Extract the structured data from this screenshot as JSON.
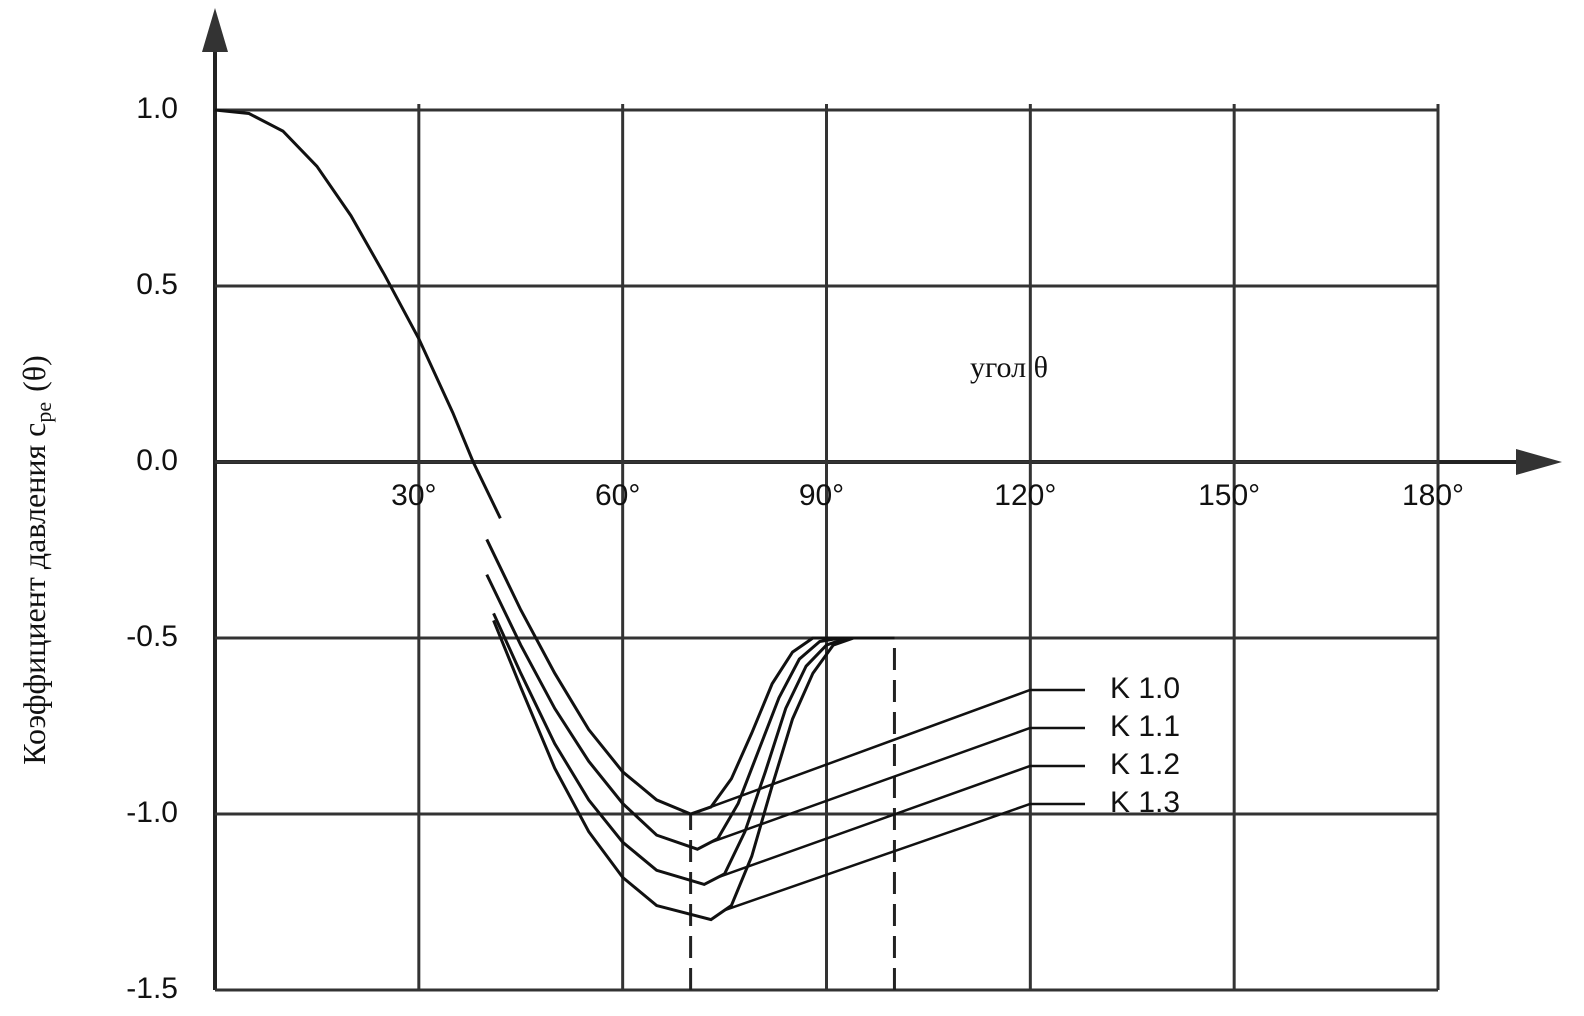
{
  "chart_data": {
    "type": "line",
    "annotation": "угол θ",
    "ylabel": "Коэффициент давления c",
    "ylabel_sub": "pe",
    "ylabel_suffix": "(θ)",
    "xlim": [
      0,
      180
    ],
    "ylim": [
      -1.5,
      1.0
    ],
    "xticks": [
      {
        "value": 30,
        "label": "30°"
      },
      {
        "value": 60,
        "label": "60°"
      },
      {
        "value": 90,
        "label": "90°"
      },
      {
        "value": 120,
        "label": "120°"
      },
      {
        "value": 150,
        "label": "150°"
      },
      {
        "value": 180,
        "label": "180°"
      }
    ],
    "yticks": [
      {
        "value": 1.0,
        "label": "1.0"
      },
      {
        "value": 0.5,
        "label": "0.5"
      },
      {
        "value": 0.0,
        "label": "0.0"
      },
      {
        "value": -0.5,
        "label": "-0.5"
      },
      {
        "value": -1.0,
        "label": "-1.0"
      },
      {
        "value": -1.5,
        "label": "-1.5"
      }
    ],
    "grid": true,
    "color": "#111111",
    "main_curve": {
      "x": [
        0,
        5,
        10,
        15,
        20,
        25,
        30,
        35,
        38,
        42
      ],
      "values": [
        1.0,
        0.99,
        0.94,
        0.84,
        0.7,
        0.53,
        0.35,
        0.14,
        0.0,
        -0.16
      ]
    },
    "vlines": [
      70,
      100
    ],
    "series": [
      {
        "name": "K 1.0",
        "color": "#111111",
        "x": [
          40,
          45,
          50,
          55,
          60,
          65,
          70,
          73,
          76,
          79,
          82,
          85,
          88,
          90,
          100
        ],
        "values": [
          -0.22,
          -0.42,
          -0.6,
          -0.76,
          -0.88,
          -0.96,
          -1.0,
          -0.98,
          -0.9,
          -0.77,
          -0.63,
          -0.54,
          -0.5,
          -0.5,
          -0.5
        ]
      },
      {
        "name": "K 1.1",
        "color": "#111111",
        "x": [
          40,
          45,
          50,
          55,
          60,
          65,
          71,
          74,
          77,
          80,
          83,
          86,
          89,
          92,
          100
        ],
        "values": [
          -0.32,
          -0.52,
          -0.7,
          -0.85,
          -0.97,
          -1.06,
          -1.1,
          -1.07,
          -0.97,
          -0.82,
          -0.67,
          -0.56,
          -0.51,
          -0.5,
          -0.5
        ]
      },
      {
        "name": "K 1.2",
        "color": "#111111",
        "x": [
          41,
          45,
          50,
          55,
          60,
          65,
          72,
          75,
          78,
          81,
          84,
          87,
          90,
          93,
          100
        ],
        "values": [
          -0.43,
          -0.6,
          -0.8,
          -0.96,
          -1.08,
          -1.16,
          -1.2,
          -1.17,
          -1.05,
          -0.88,
          -0.7,
          -0.58,
          -0.52,
          -0.5,
          -0.5
        ]
      },
      {
        "name": "K 1.3",
        "color": "#111111",
        "x": [
          41,
          45,
          50,
          55,
          60,
          65,
          73,
          76,
          79,
          82,
          85,
          88,
          91,
          94,
          100
        ],
        "values": [
          -0.45,
          -0.64,
          -0.87,
          -1.05,
          -1.18,
          -1.26,
          -1.3,
          -1.26,
          -1.12,
          -0.92,
          -0.73,
          -0.6,
          -0.52,
          -0.5,
          -0.5
        ]
      }
    ]
  }
}
